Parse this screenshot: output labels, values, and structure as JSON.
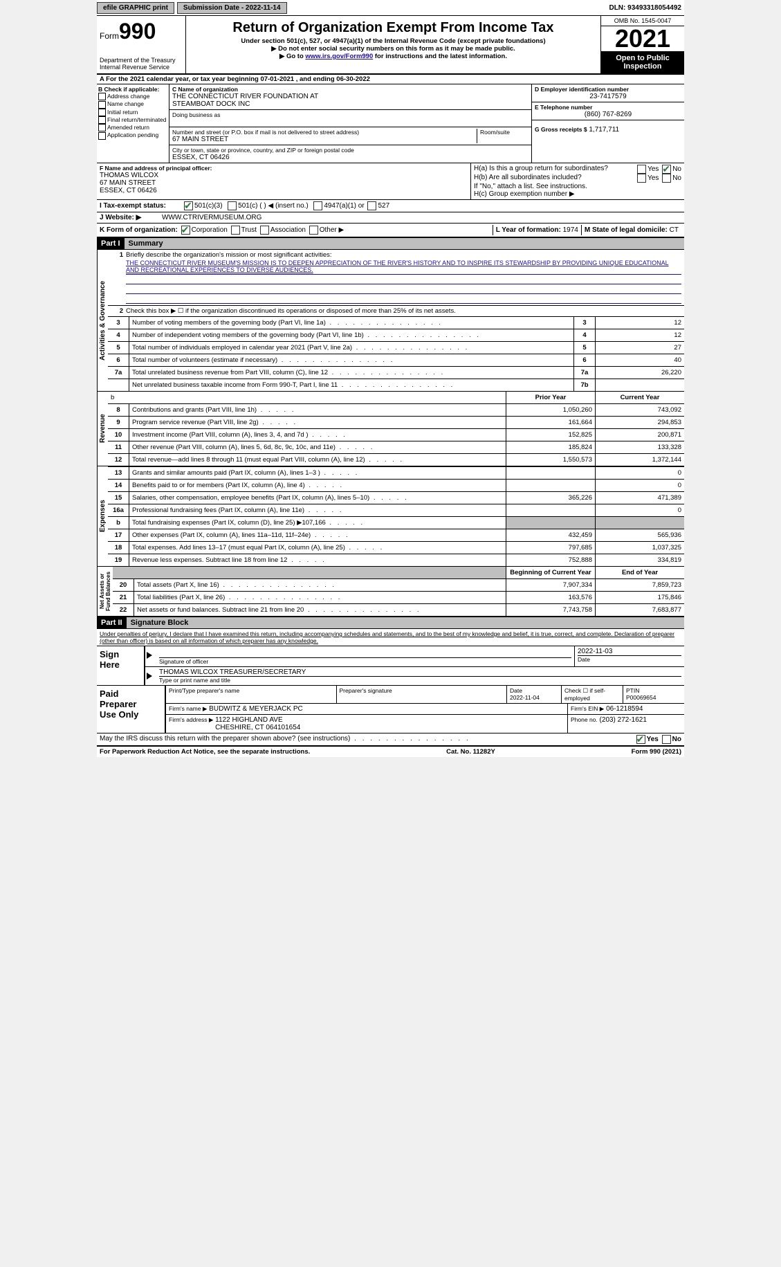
{
  "topbar": {
    "efile": "efile GRAPHIC print",
    "submission_label": "Submission Date - 2022-11-14",
    "dln": "DLN: 93493318054492"
  },
  "header": {
    "form_prefix": "Form",
    "form_number": "990",
    "title": "Return of Organization Exempt From Income Tax",
    "sub1": "Under section 501(c), 527, or 4947(a)(1) of the Internal Revenue Code (except private foundations)",
    "sub2": "▶ Do not enter social security numbers on this form as it may be made public.",
    "sub3_pre": "▶ Go to ",
    "sub3_link": "www.irs.gov/Form990",
    "sub3_post": " for instructions and the latest information.",
    "dept": "Department of the Treasury\nInternal Revenue Service",
    "omb": "OMB No. 1545-0047",
    "year": "2021",
    "open": "Open to Public Inspection"
  },
  "lineA": "A  For the 2021 calendar year, or tax year beginning 07-01-2021    , and ending 06-30-2022",
  "sectB": {
    "label": "B Check if applicable:",
    "opts": [
      "Address change",
      "Name change",
      "Initial return",
      "Final return/terminated",
      "Amended return",
      "Application pending"
    ],
    "c_name_lbl": "C Name of organization",
    "c_name": "THE CONNECTICUT RIVER FOUNDATION AT\nSTEAMBOAT DOCK INC",
    "dba_lbl": "Doing business as",
    "street_lbl": "Number and street (or P.O. box if mail is not delivered to street address)",
    "room_lbl": "Room/suite",
    "street": "67 MAIN STREET",
    "city_lbl": "City or town, state or province, country, and ZIP or foreign postal code",
    "city": "ESSEX, CT  06426",
    "d_lbl": "D Employer identification number",
    "d_val": "23-7417579",
    "e_lbl": "E Telephone number",
    "e_val": "(860) 767-8269",
    "g_lbl": "G Gross receipts $",
    "g_val": "1,717,711",
    "f_lbl": "F Name and address of principal officer:",
    "f_val": "THOMAS WILCOX\n67 MAIN STREET\nESSEX, CT  06426",
    "ha_lbl": "H(a)  Is this a group return for subordinates?",
    "hb_lbl": "H(b)  Are all subordinates included?",
    "hb_note": "If \"No,\" attach a list. See instructions.",
    "hc_lbl": "H(c)  Group exemption number ▶",
    "yes": "Yes",
    "no": "No"
  },
  "lineI": {
    "label": "I    Tax-exempt status:",
    "o1": "501(c)(3)",
    "o2": "501(c) (  ) ◀ (insert no.)",
    "o3": "4947(a)(1) or",
    "o4": "527"
  },
  "lineJ": {
    "label": "J    Website: ▶",
    "val": "WWW.CTRIVERMUSEUM.ORG"
  },
  "lineK": {
    "label": "K Form of organization:",
    "o1": "Corporation",
    "o2": "Trust",
    "o3": "Association",
    "o4": "Other ▶",
    "l_lbl": "L Year of formation:",
    "l_val": "1974",
    "m_lbl": "M State of legal domicile:",
    "m_val": "CT"
  },
  "part1": {
    "hdr": "Part I",
    "title": "Summary",
    "q1_lbl": "Briefly describe the organization's mission or most significant activities:",
    "q1_val": "THE CONNECTICUT RIVER MUSEUM'S MISSION IS TO DEEPEN APPRECIATION OF THE RIVER'S HISTORY AND TO INSPIRE ITS STEWARDSHIP BY PROVIDING UNIQUE EDUCATIONAL AND RECREATIONAL EXPERIENCES TO DIVERSE AUDIENCES.",
    "q2": "Check this box ▶ ☐ if the organization discontinued its operations or disposed of more than 25% of its net assets.",
    "rows_a": [
      {
        "n": "3",
        "lbl": "Number of voting members of the governing body (Part VI, line 1a)",
        "box": "3",
        "val": "12"
      },
      {
        "n": "4",
        "lbl": "Number of independent voting members of the governing body (Part VI, line 1b)",
        "box": "4",
        "val": "12"
      },
      {
        "n": "5",
        "lbl": "Total number of individuals employed in calendar year 2021 (Part V, line 2a)",
        "box": "5",
        "val": "27"
      },
      {
        "n": "6",
        "lbl": "Total number of volunteers (estimate if necessary)",
        "box": "6",
        "val": "40"
      },
      {
        "n": "7a",
        "lbl": "Total unrelated business revenue from Part VIII, column (C), line 12",
        "box": "7a",
        "val": "26,220"
      },
      {
        "n": "",
        "lbl": "Net unrelated business taxable income from Form 990-T, Part I, line 11",
        "box": "7b",
        "val": ""
      }
    ],
    "hdr_b": "b",
    "col_py": "Prior Year",
    "col_cy": "Current Year",
    "rows_rev": [
      {
        "n": "8",
        "lbl": "Contributions and grants (Part VIII, line 1h)",
        "py": "1,050,260",
        "cy": "743,092"
      },
      {
        "n": "9",
        "lbl": "Program service revenue (Part VIII, line 2g)",
        "py": "161,664",
        "cy": "294,853"
      },
      {
        "n": "10",
        "lbl": "Investment income (Part VIII, column (A), lines 3, 4, and 7d )",
        "py": "152,825",
        "cy": "200,871"
      },
      {
        "n": "11",
        "lbl": "Other revenue (Part VIII, column (A), lines 5, 6d, 8c, 9c, 10c, and 11e)",
        "py": "185,824",
        "cy": "133,328"
      },
      {
        "n": "12",
        "lbl": "Total revenue—add lines 8 through 11 (must equal Part VIII, column (A), line 12)",
        "py": "1,550,573",
        "cy": "1,372,144"
      }
    ],
    "rows_exp": [
      {
        "n": "13",
        "lbl": "Grants and similar amounts paid (Part IX, column (A), lines 1–3 )",
        "py": "",
        "cy": "0"
      },
      {
        "n": "14",
        "lbl": "Benefits paid to or for members (Part IX, column (A), line 4)",
        "py": "",
        "cy": "0"
      },
      {
        "n": "15",
        "lbl": "Salaries, other compensation, employee benefits (Part IX, column (A), lines 5–10)",
        "py": "365,226",
        "cy": "471,389"
      },
      {
        "n": "16a",
        "lbl": "Professional fundraising fees (Part IX, column (A), line 11e)",
        "py": "",
        "cy": "0"
      },
      {
        "n": "b",
        "lbl": "Total fundraising expenses (Part IX, column (D), line 25) ▶107,166",
        "py": "gray",
        "cy": "gray"
      },
      {
        "n": "17",
        "lbl": "Other expenses (Part IX, column (A), lines 11a–11d, 11f–24e)",
        "py": "432,459",
        "cy": "565,936"
      },
      {
        "n": "18",
        "lbl": "Total expenses. Add lines 13–17 (must equal Part IX, column (A), line 25)",
        "py": "797,685",
        "cy": "1,037,325"
      },
      {
        "n": "19",
        "lbl": "Revenue less expenses. Subtract line 18 from line 12",
        "py": "752,888",
        "cy": "334,819"
      }
    ],
    "col_boy": "Beginning of Current Year",
    "col_eoy": "End of Year",
    "rows_na": [
      {
        "n": "20",
        "lbl": "Total assets (Part X, line 16)",
        "py": "7,907,334",
        "cy": "7,859,723"
      },
      {
        "n": "21",
        "lbl": "Total liabilities (Part X, line 26)",
        "py": "163,576",
        "cy": "175,846"
      },
      {
        "n": "22",
        "lbl": "Net assets or fund balances. Subtract line 21 from line 20",
        "py": "7,743,758",
        "cy": "7,683,877"
      }
    ],
    "side_a": "Activities & Governance",
    "side_r": "Revenue",
    "side_e": "Expenses",
    "side_n": "Net Assets or\nFund Balances"
  },
  "part2": {
    "hdr": "Part II",
    "title": "Signature Block",
    "decl": "Under penalties of perjury, I declare that I have examined this return, including accompanying schedules and statements, and to the best of my knowledge and belief, it is true, correct, and complete. Declaration of preparer (other than officer) is based on all information of which preparer has any knowledge.",
    "sign_here": "Sign\nHere",
    "sig_officer": "Signature of officer",
    "sig_date": "2022-11-03",
    "date_lbl": "Date",
    "officer_name": "THOMAS WILCOX  TREASURER/SECRETARY",
    "type_name": "Type or print name and title",
    "paid": "Paid\nPreparer\nUse Only",
    "pt_name_lbl": "Print/Type preparer's name",
    "pt_sig_lbl": "Preparer's signature",
    "pt_date_lbl": "Date",
    "pt_date": "2022-11-04",
    "pt_check_lbl": "Check ☐ if self-employed",
    "ptin_lbl": "PTIN",
    "ptin": "P00069654",
    "firm_name_lbl": "Firm's name    ▶",
    "firm_name": "BUDWITZ & MEYERJACK PC",
    "firm_ein_lbl": "Firm's EIN ▶",
    "firm_ein": "06-1218594",
    "firm_addr_lbl": "Firm's address ▶",
    "firm_addr": "1122 HIGHLAND AVE\nCHESHIRE, CT  064101654",
    "phone_lbl": "Phone no.",
    "phone": "(203) 272-1621",
    "may_irs": "May the IRS discuss this return with the preparer shown above? (see instructions)"
  },
  "footer": {
    "left": "For Paperwork Reduction Act Notice, see the separate instructions.",
    "mid": "Cat. No. 11282Y",
    "right": "Form 990 (2021)"
  },
  "colors": {
    "header_black": "#000000",
    "gray_btn": "#bfbfbf",
    "link": "#1a0dab",
    "check_green": "#2a7a3a"
  }
}
